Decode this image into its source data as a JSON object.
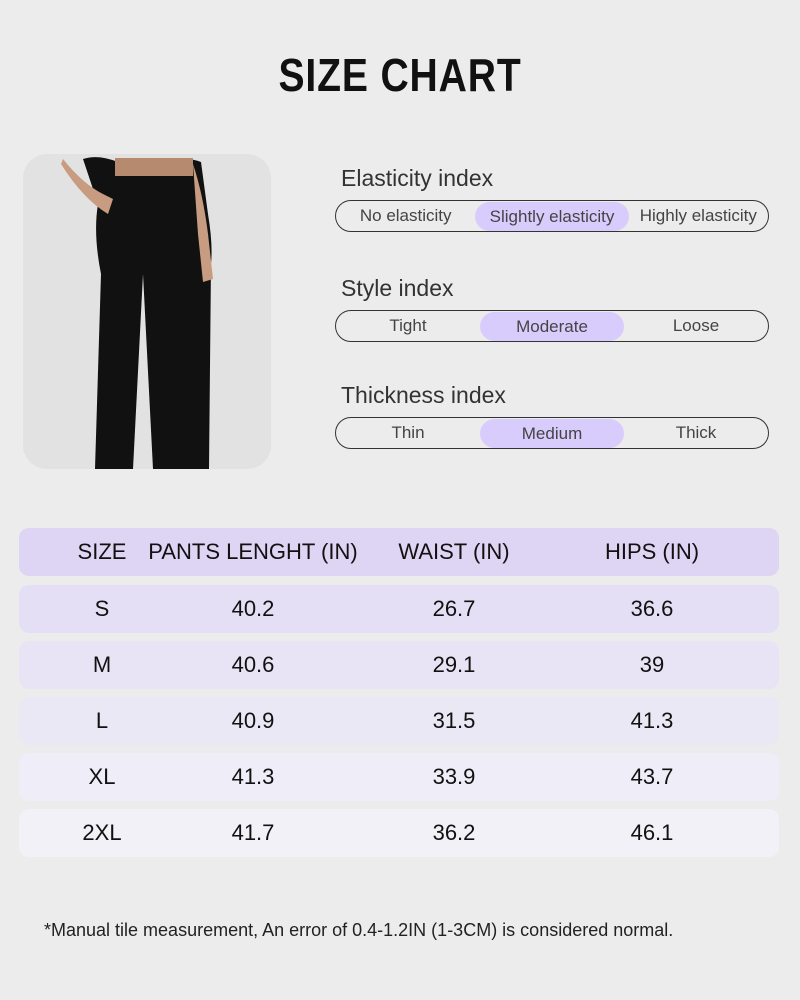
{
  "title": "SIZE CHART",
  "indices": [
    {
      "label": "Elasticity index",
      "options": [
        "No elasticity",
        "Slightly elasticity",
        "Highly elasticity"
      ],
      "selected": 1
    },
    {
      "label": "Style index",
      "options": [
        "Tight",
        "Moderate",
        "Loose"
      ],
      "selected": 1
    },
    {
      "label": "Thickness index",
      "options": [
        "Thin",
        "Medium",
        "Thick"
      ],
      "selected": 1
    }
  ],
  "table": {
    "headers": [
      "SIZE",
      "PANTS LENGHT (IN)",
      "WAIST (IN)",
      "HIPS (IN)"
    ],
    "rows": [
      [
        "S",
        "40.2",
        "26.7",
        "36.6"
      ],
      [
        "M",
        "40.6",
        "29.1",
        "39"
      ],
      [
        "L",
        "40.9",
        "31.5",
        "41.3"
      ],
      [
        "XL",
        "41.3",
        "33.9",
        "43.7"
      ],
      [
        "2XL",
        "41.7",
        "36.2",
        "46.1"
      ]
    ]
  },
  "note": "*Manual tile measurement, An error of 0.4-1.2IN (1-3CM) is considered normal.",
  "colors": {
    "background": "#ececec",
    "highlight": "#d8ccfc",
    "header": "#ddd5f3",
    "rows": [
      "#e4dff5",
      "#e8e4f6",
      "#ebe8f6",
      "#efedf7",
      "#f2f1f7"
    ]
  }
}
